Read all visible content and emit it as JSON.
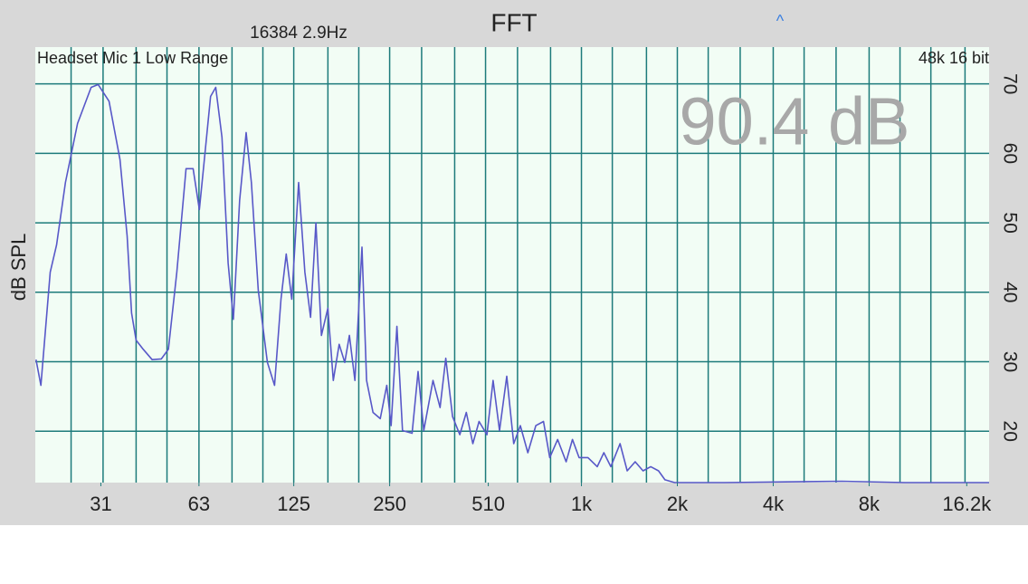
{
  "chart_data": {
    "type": "line",
    "title": "FFT",
    "subtitle": "16384  2.9Hz",
    "marker": "^",
    "source_label": "Headset Mic 1 Low Range",
    "format_label": "48k 16 bit",
    "level_label": "90.4 dB",
    "y_label": "dB SPL",
    "x_scale": "log",
    "grid": true,
    "color": "#5858c8",
    "xlim": [
      19.3,
      19040
    ],
    "ylim": [
      12.6,
      75.3
    ],
    "xticks": [
      31,
      63,
      125,
      250,
      510,
      {
        "value": 1000,
        "label": "1k"
      },
      {
        "value": 2000,
        "label": "2k"
      },
      {
        "value": 4000,
        "label": "4k"
      },
      {
        "value": 8000,
        "label": "8k"
      },
      {
        "value": 16200,
        "label": "16.2k"
      }
    ],
    "xgrid": [
      25,
      31.5,
      40,
      50,
      63,
      80,
      100,
      125,
      160,
      200,
      250,
      315,
      400,
      500,
      630,
      800,
      1000,
      1250,
      1600,
      2000,
      2500,
      3150,
      4000,
      5000,
      6300,
      8000,
      10000,
      12500,
      16000
    ],
    "yticks": [
      20,
      30,
      40,
      50,
      60,
      70
    ],
    "x": [
      19.4,
      20.1,
      21.5,
      22.5,
      24.0,
      26.2,
      28.9,
      30.4,
      32.9,
      35.6,
      37.5,
      38.7,
      40.0,
      42.1,
      44.9,
      48.0,
      50.5,
      53.7,
      57.4,
      60.4,
      63.2,
      65.3,
      68.5,
      71.1,
      74.4,
      77.8,
      80.8,
      84.5,
      88.6,
      92.0,
      96.7,
      103.3,
      108.8,
      114.0,
      118.4,
      123.2,
      129.5,
      135.5,
      141.2,
      146.7,
      152.7,
      159.9,
      166.3,
      173.6,
      180.7,
      186.9,
      194.5,
      204.7,
      211.6,
      221.7,
      233.6,
      244.9,
      252.7,
      263.4,
      274.3,
      294,
      307,
      320,
      342,
      360,
      375,
      394,
      415,
      435,
      456,
      477,
      505,
      528,
      553,
      583,
      613,
      643,
      679,
      719,
      760,
      795,
      842,
      895,
      937,
      983,
      1048,
      1121,
      1176,
      1237,
      1322,
      1392,
      1475,
      1561,
      1650,
      1746,
      1829,
      1962,
      2805,
      6572,
      10380,
      19040
    ],
    "values": [
      30.3,
      26.6,
      42.9,
      46.8,
      55.8,
      64.3,
      69.5,
      69.9,
      67.5,
      59.1,
      48.1,
      37.0,
      33.1,
      31.8,
      30.3,
      30.4,
      31.8,
      42.9,
      57.8,
      57.8,
      51.9,
      58.4,
      68.2,
      69.5,
      62.3,
      44.2,
      36.1,
      53.2,
      63.0,
      55.8,
      40.3,
      29.9,
      26.6,
      39.0,
      45.5,
      39.0,
      55.8,
      42.9,
      36.4,
      50.0,
      33.8,
      37.7,
      27.3,
      32.5,
      29.9,
      33.8,
      27.3,
      46.5,
      27.3,
      22.7,
      21.8,
      26.6,
      20.8,
      35.1,
      20.1,
      19.7,
      28.6,
      20.1,
      27.3,
      23.4,
      30.5,
      22.1,
      19.5,
      22.7,
      18.2,
      21.4,
      19.5,
      27.3,
      20.1,
      27.9,
      18.2,
      20.8,
      16.9,
      20.8,
      21.4,
      16.2,
      18.8,
      15.6,
      18.8,
      16.2,
      16.2,
      14.9,
      16.9,
      14.9,
      18.2,
      14.3,
      15.6,
      14.3,
      14.9,
      14.3,
      13.0,
      12.6,
      12.6,
      12.8,
      12.6,
      12.6
    ]
  }
}
